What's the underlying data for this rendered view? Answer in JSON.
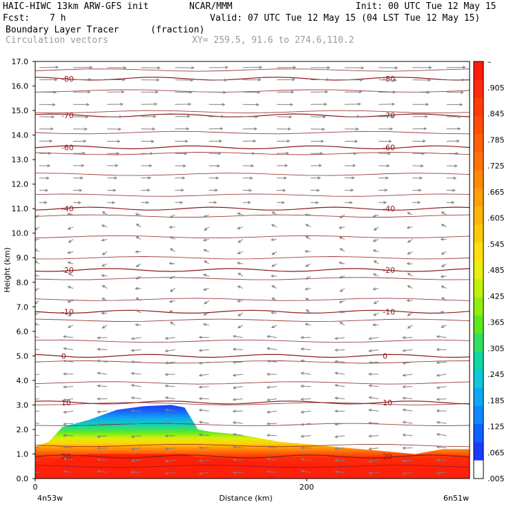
{
  "header": {
    "model": "HAIC-HIWC 13km ARW-GFS init",
    "org": "NCAR/MMM",
    "init": "Init: 00 UTC Tue 12 May 15",
    "fcst_label": "Fcst:",
    "fcst_value": "7 h",
    "valid": "Valid: 07 UTC Tue 12 May 15 (04 LST Tue 12 May 15)",
    "field": "Boundary Layer Tracer",
    "field_units": "(fraction)",
    "overlay": "Circulation vectors",
    "xy": "XY= 259.5, 91.6 to 274.6,110.2"
  },
  "chart_data": {
    "type": "heatmap",
    "xlabel": "Distance (km)",
    "ylabel": "Height (km)",
    "xlim": [
      0,
      320
    ],
    "ylim": [
      0,
      17
    ],
    "x_ticks": [
      "0",
      "200"
    ],
    "y_ticks": [
      "0.0",
      "1.0",
      "2.0",
      "3.0",
      "4.0",
      "5.0",
      "6.0",
      "7.0",
      "8.0",
      "9.0",
      "10.0",
      "11.0",
      "12.0",
      "13.0",
      "14.0",
      "15.0",
      "16.0",
      "17.0"
    ],
    "x_endpoints": {
      "left": "4n53w",
      "right": "6n51w"
    },
    "colorbar": {
      "labels": [
        "–",
        ".905",
        ".845",
        ".785",
        ".725",
        ".665",
        ".605",
        ".545",
        ".485",
        ".425",
        ".365",
        ".305",
        ".245",
        ".185",
        ".125",
        ".065",
        ".005"
      ],
      "colors": [
        "#ff1a0a",
        "#ff2a0a",
        "#ff3b0a",
        "#ff4d0a",
        "#ff600a",
        "#ff740a",
        "#ff890a",
        "#ff9f0a",
        "#ffb40a",
        "#ffca0a",
        "#ffe00a",
        "#e8ef0a",
        "#c0f00a",
        "#90ee10",
        "#5ce820",
        "#2ee060",
        "#10d8a0",
        "#10c8d8",
        "#10a8f0",
        "#1088ff",
        "#1060ff",
        "#1a3cff",
        "#ffffff"
      ]
    },
    "tracer_profile": {
      "x_km": [
        0,
        10,
        20,
        40,
        60,
        80,
        100,
        110,
        120,
        130,
        150,
        180,
        220,
        260,
        280,
        300,
        320
      ],
      "top_km": [
        1.3,
        1.5,
        2.1,
        2.4,
        2.8,
        2.95,
        3.0,
        2.9,
        2.0,
        1.9,
        1.8,
        1.5,
        1.3,
        1.1,
        1.0,
        1.2,
        1.2
      ]
    },
    "isotherms": [
      {
        "value": 20,
        "label": "20",
        "height_km": 0.9
      },
      {
        "value": 10,
        "label": "10",
        "height_km": 3.1
      },
      {
        "value": 0,
        "label": "0",
        "height_km": 5.0
      },
      {
        "value": -10,
        "label": "-10",
        "height_km": 6.8
      },
      {
        "value": -20,
        "label": "-20",
        "height_km": 8.5
      },
      {
        "value": -40,
        "label": "-40",
        "height_km": 11.0
      },
      {
        "value": -60,
        "label": "-60",
        "height_km": 13.5
      },
      {
        "value": -70,
        "label": "-70",
        "height_km": 14.8
      },
      {
        "value": -80,
        "label": "-80",
        "height_km": 16.3
      }
    ]
  }
}
